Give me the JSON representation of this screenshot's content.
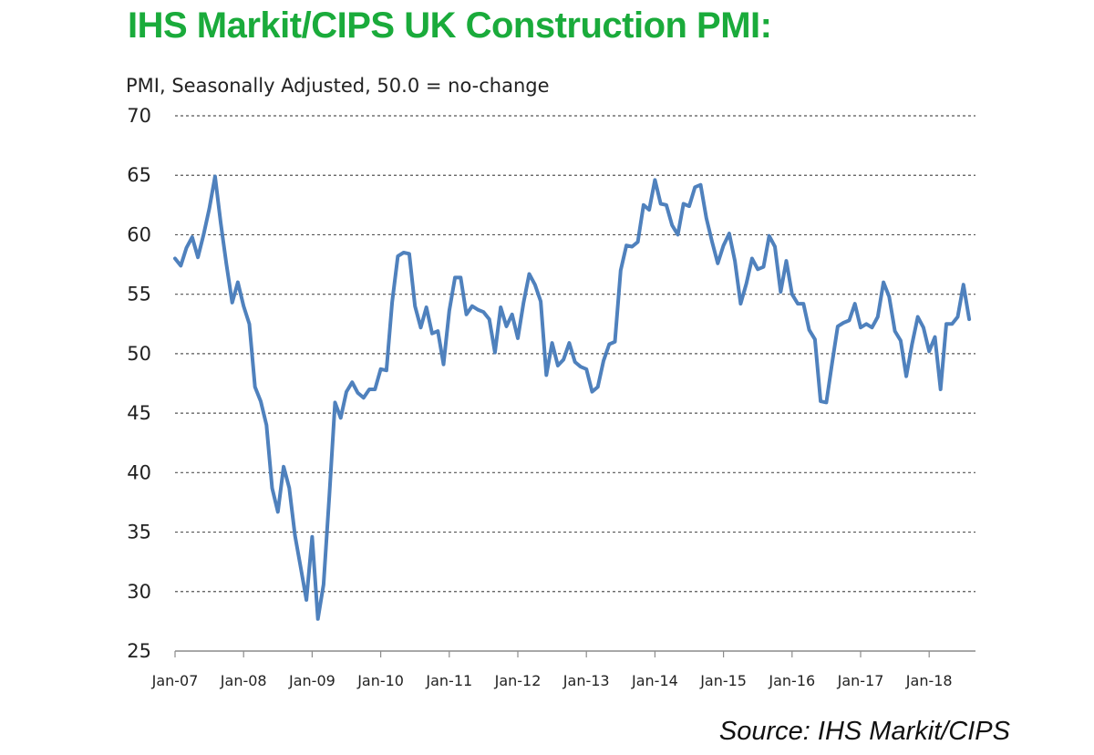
{
  "title": "IHS Markit/CIPS UK Construction PMI:",
  "subtitle": "PMI, Seasonally Adjusted, 50.0 = no-change",
  "source": "Source: IHS Markit/CIPS",
  "colors": {
    "title": "#1aab3b",
    "line": "#4f81bd",
    "grid": "#555555",
    "axis": "#8c8c8c"
  },
  "chart_data": {
    "type": "line",
    "title": "IHS Markit/CIPS UK Construction PMI:",
    "ylabel": "PMI, Seasonally Adjusted, 50.0 = no-change",
    "xlabel": "",
    "ylim": [
      25,
      70
    ],
    "yticks": [
      25,
      30,
      35,
      40,
      45,
      50,
      55,
      60,
      65,
      70
    ],
    "grid": "horizontal dashed",
    "xtick_labels": [
      "Jan-07",
      "Jan-08",
      "Jan-09",
      "Jan-10",
      "Jan-11",
      "Jan-12",
      "Jan-13",
      "Jan-14",
      "Jan-15",
      "Jan-16",
      "Jan-17",
      "Jan-18"
    ],
    "x_start": "Jan-07",
    "x_end": "Jun-18",
    "series": [
      {
        "values": [
          58.0,
          57.4,
          58.9,
          59.8,
          58.1,
          60.0,
          62.2,
          64.9,
          61.0,
          57.5,
          54.3,
          56.0,
          54.0,
          52.5,
          47.2,
          46.0,
          44.0,
          38.7,
          36.7,
          40.5,
          38.7,
          34.7,
          32.0,
          29.3,
          34.6,
          27.7,
          30.6,
          38.0,
          45.9,
          44.6,
          46.8,
          47.6,
          46.7,
          46.3,
          47.0,
          47.0,
          48.7,
          48.6,
          54.3,
          58.2,
          58.5,
          58.4,
          54.0,
          52.2,
          53.9,
          51.7,
          51.9,
          49.1,
          53.6,
          56.4,
          56.4,
          53.3,
          54.0,
          53.7,
          53.5,
          52.9,
          50.1,
          53.9,
          52.3,
          53.3,
          51.3,
          54.3,
          56.7,
          55.8,
          54.4,
          48.2,
          50.9,
          49.0,
          49.5,
          50.9,
          49.3,
          48.9,
          48.7,
          46.8,
          47.2,
          49.4,
          50.8,
          51.0,
          57.0,
          59.1,
          59.0,
          59.4,
          62.5,
          62.1,
          64.6,
          62.6,
          62.5,
          60.8,
          60.0,
          62.6,
          62.4,
          64.0,
          64.2,
          61.4,
          59.4,
          57.6,
          59.1,
          60.1,
          57.8,
          54.2,
          55.9,
          58.0,
          57.1,
          57.3,
          59.9,
          59.0,
          55.2,
          57.8,
          55.0,
          54.2,
          54.2,
          52.0,
          51.2,
          46.0,
          45.9,
          49.2,
          52.3,
          52.6,
          52.8,
          54.2,
          52.2,
          52.5,
          52.2,
          53.1,
          56.0,
          54.8,
          51.9,
          51.1,
          48.1,
          50.8,
          53.1,
          52.2,
          50.2,
          51.4,
          47.0,
          52.5,
          52.5,
          53.1,
          55.8,
          52.9
        ]
      }
    ]
  }
}
